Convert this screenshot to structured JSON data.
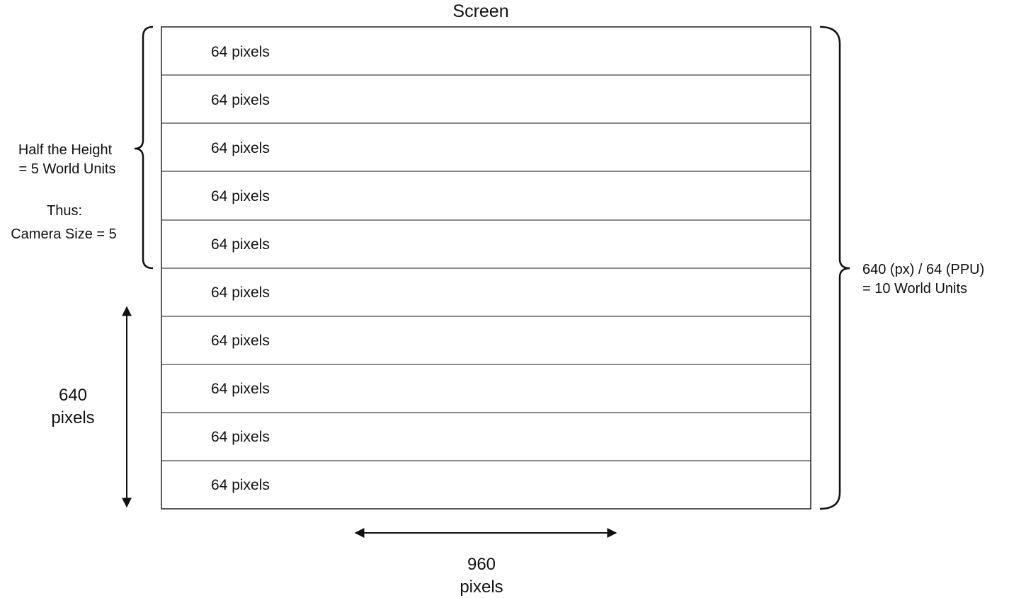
{
  "title": "Screen",
  "rows": [
    {
      "label": "64 pixels"
    },
    {
      "label": "64 pixels"
    },
    {
      "label": "64 pixels"
    },
    {
      "label": "64 pixels"
    },
    {
      "label": "64 pixels"
    },
    {
      "label": "64 pixels"
    },
    {
      "label": "64 pixels"
    },
    {
      "label": "64 pixels"
    },
    {
      "label": "64 pixels"
    },
    {
      "label": "64 pixels"
    }
  ],
  "left_brace": {
    "line1": "Half the Height",
    "line2": "= 5 World Units",
    "line3": "Thus:",
    "line4": "Camera Size = 5"
  },
  "right_brace": {
    "line1": "640 (px) / 64 (PPU)",
    "line2": "= 10 World Units"
  },
  "height_dimension": {
    "line1": "640",
    "line2": "pixels"
  },
  "width_dimension": {
    "line1": "960",
    "line2": "pixels"
  },
  "colors": {
    "stroke": "#222222",
    "text": "#111111",
    "background": "#ffffff"
  }
}
